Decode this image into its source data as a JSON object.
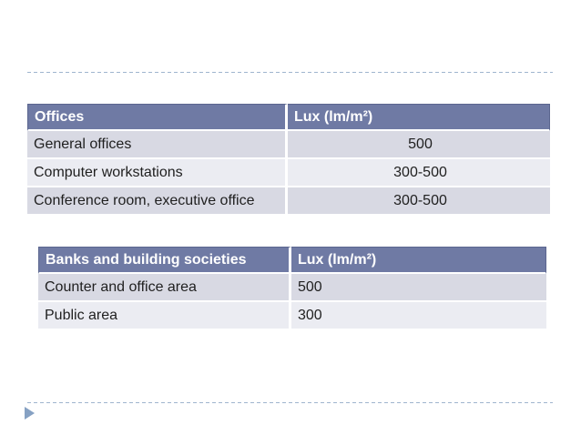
{
  "slide": {
    "type": "presentation-slide",
    "accent_colors": {
      "table_header_bg": "#6F7AA4",
      "table_header_border": "#5B668F",
      "table_header_text": "#FFFFFF",
      "row_band_dark": "#D8D9E3",
      "row_band_light": "#EBECF2",
      "body_text": "#1F1F1F",
      "dashed_divider": "#9FB5CE",
      "bullet_arrow": "#86A1C3"
    },
    "icons": {
      "bullet_arrow": "right-pointing-triangle"
    }
  },
  "tables": [
    {
      "name": "offices",
      "header": [
        "Offices",
        "Lux (lm/m²)"
      ],
      "rows": [
        [
          "General offices",
          "500"
        ],
        [
          "Computer workstations",
          "300-500"
        ],
        [
          "Conference room, executive office",
          "300-500"
        ]
      ],
      "value_alignment": "center"
    },
    {
      "name": "banks-and-building-societies",
      "header": [
        "Banks and building societies",
        "Lux (lm/m²)"
      ],
      "rows": [
        [
          "Counter and office area",
          "500"
        ],
        [
          "Public area",
          "300"
        ]
      ],
      "value_alignment": "left"
    }
  ]
}
